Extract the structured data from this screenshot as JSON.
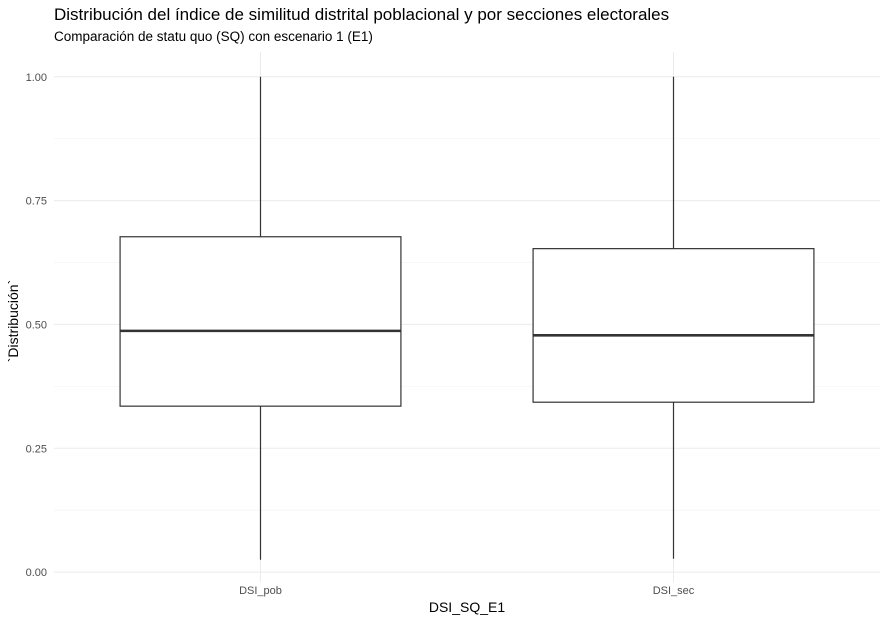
{
  "chart_data": {
    "type": "box",
    "title": "Distribución del índice de similitud distrital poblacional y por secciones electorales",
    "subtitle": "Comparación de statu quo (SQ) con escenario 1 (E1)",
    "xlabel": "DSI_SQ_E1",
    "ylabel": "`Distribución`",
    "ylim": [
      -0.02,
      1.05
    ],
    "y_ticks": [
      0.0,
      0.25,
      0.5,
      0.75,
      1.0
    ],
    "y_tick_labels": [
      "0.00",
      "0.25",
      "0.50",
      "0.75",
      "1.00"
    ],
    "categories": [
      "DSI_pob",
      "DSI_sec"
    ],
    "boxes": [
      {
        "category": "DSI_pob",
        "min": 0.025,
        "q1": 0.335,
        "median": 0.487,
        "q3": 0.677,
        "max": 1.0
      },
      {
        "category": "DSI_sec",
        "min": 0.027,
        "q1": 0.343,
        "median": 0.478,
        "q3": 0.653,
        "max": 1.0
      }
    ],
    "grid": true,
    "colors": {
      "box_stroke": "#333333",
      "box_fill": "#ffffff",
      "grid_major": "#ebebeb",
      "grid_minor": "#f5f5f5"
    }
  }
}
